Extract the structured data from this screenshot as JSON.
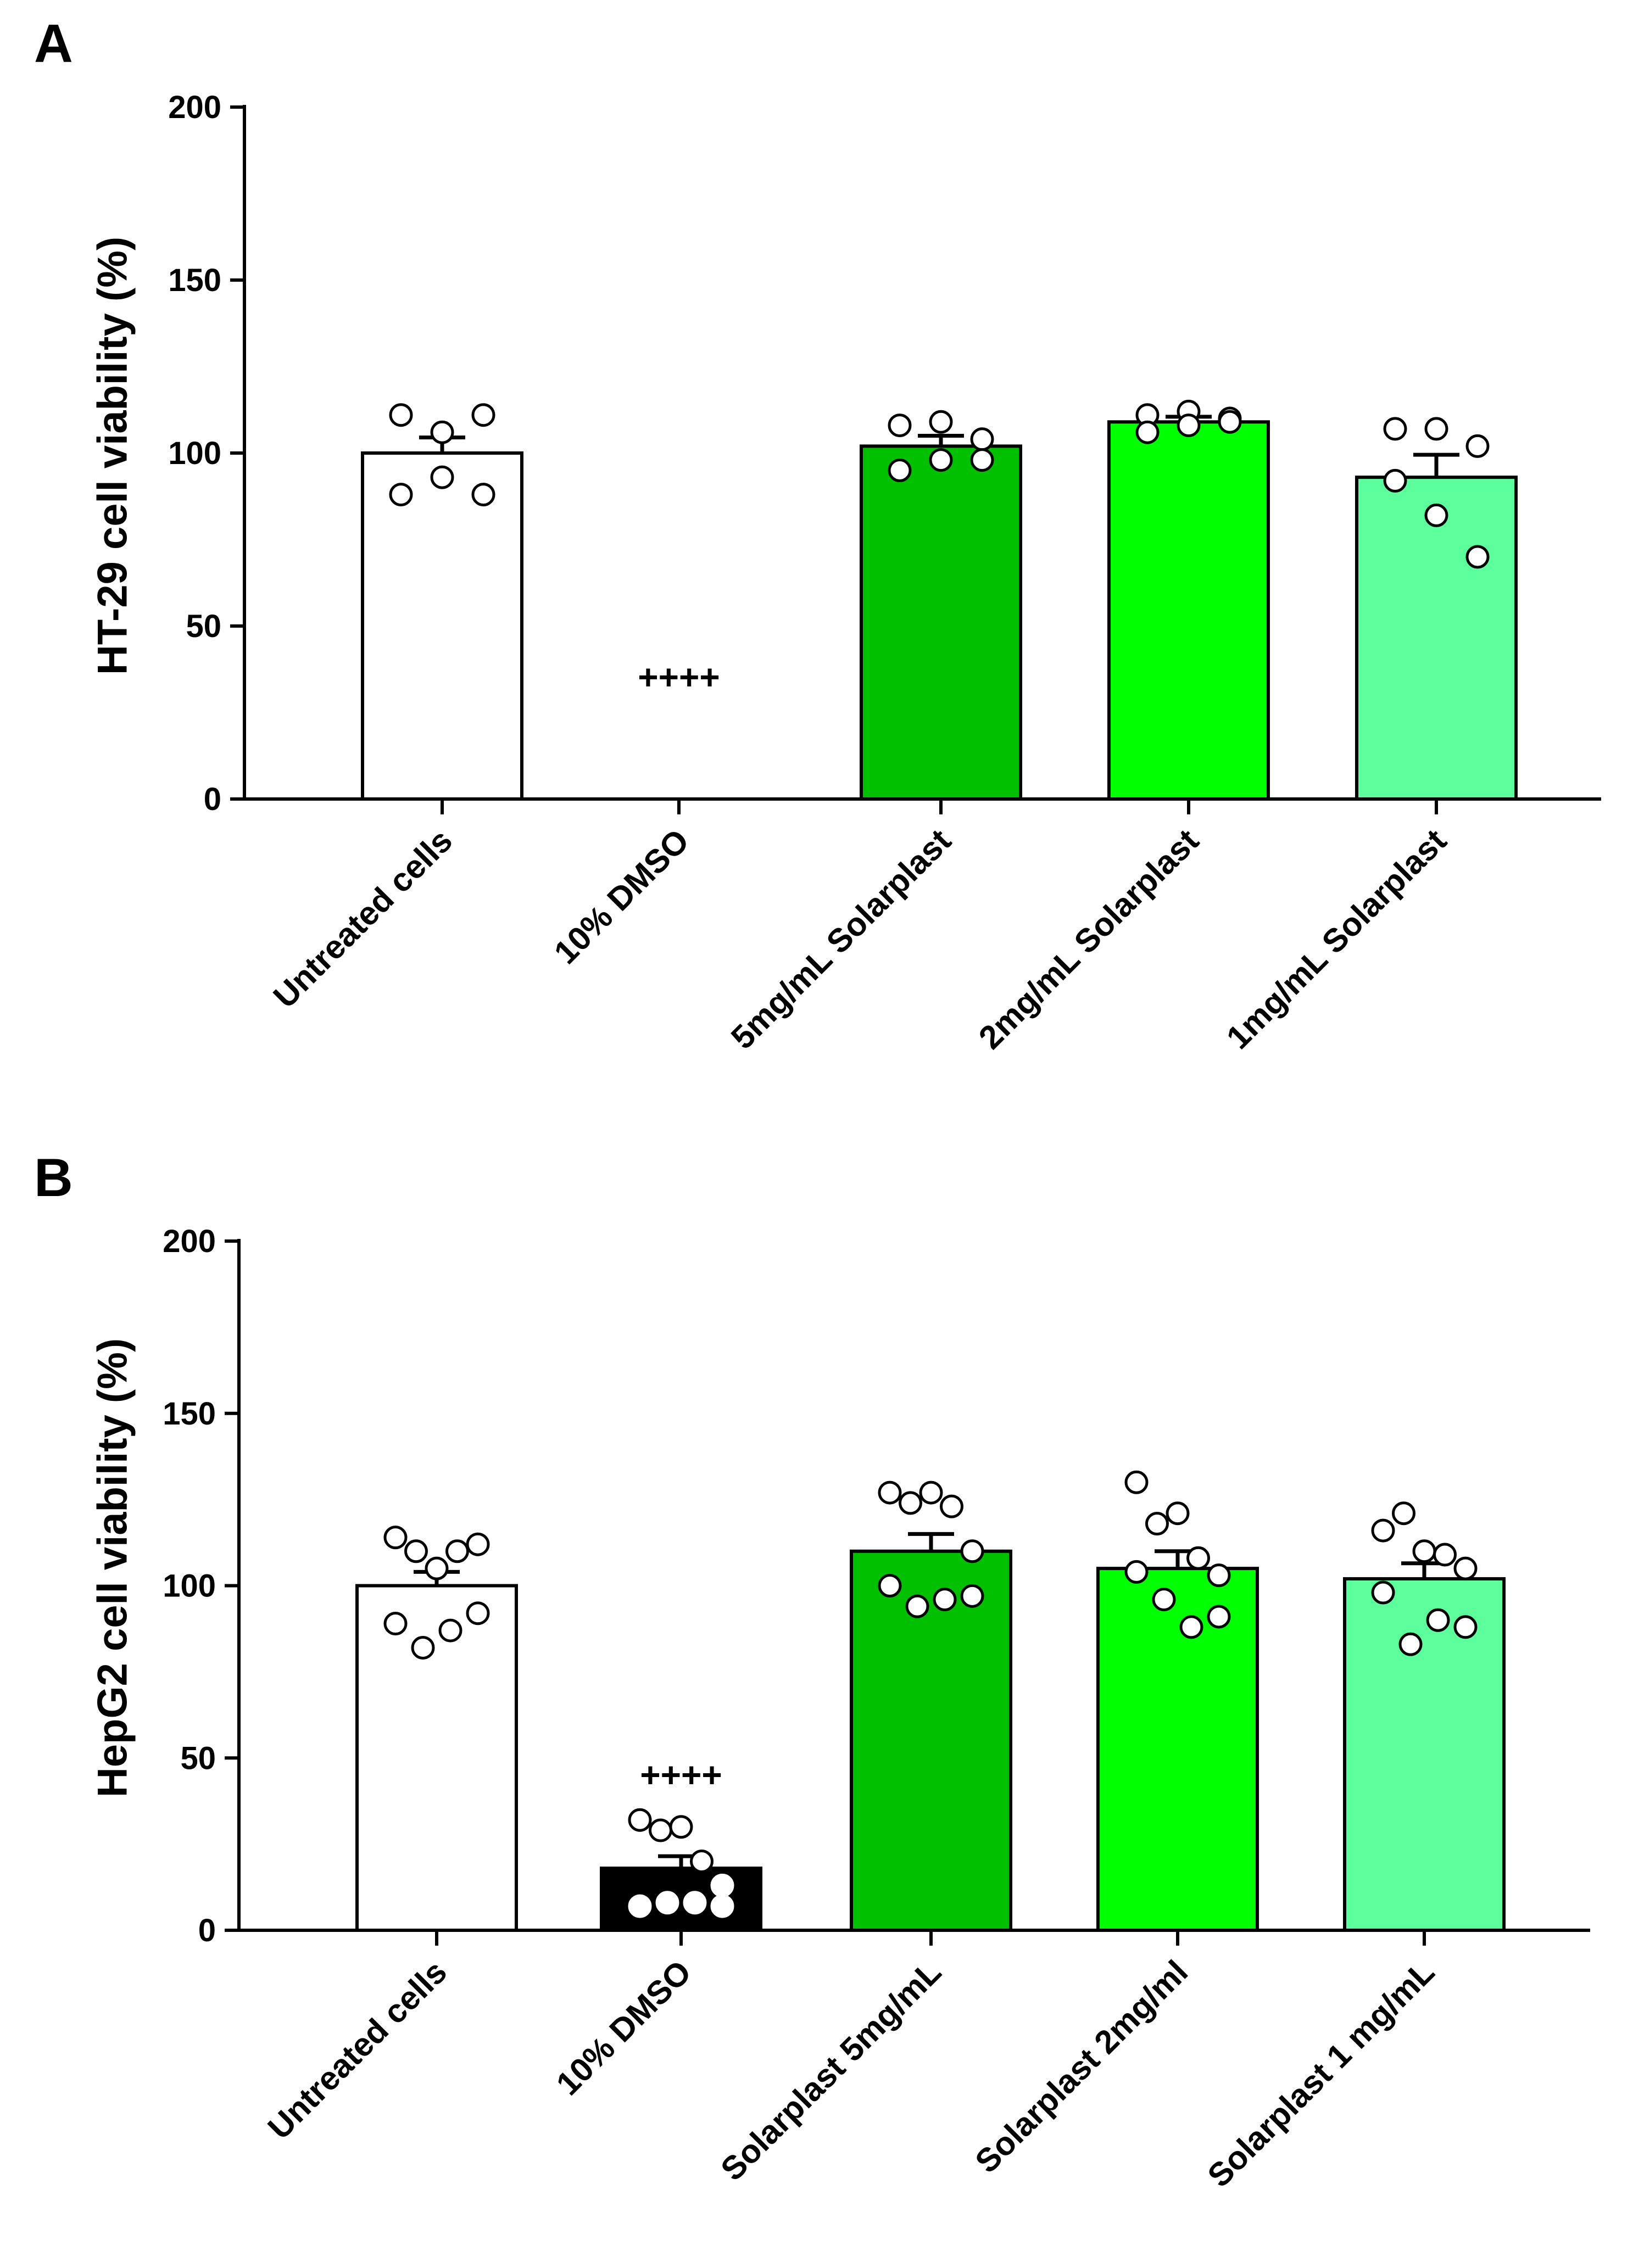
{
  "chart_data": [
    {
      "panel": "A",
      "type": "bar",
      "ylabel": "HT-29 cell viability (%)",
      "xlabel": "",
      "ylim": [
        0,
        200
      ],
      "yticks": [
        0,
        50,
        100,
        150,
        200
      ],
      "categories": [
        "Untreated cells",
        "10% DMSO",
        "5mg/mL Solarplast",
        "2mg/mL Solarplast",
        "1mg/mL Solarplast"
      ],
      "values": [
        100,
        0,
        102,
        109,
        93
      ],
      "errors": [
        4.5,
        0,
        3,
        1.5,
        6.5
      ],
      "points": [
        [
          111,
          106,
          111,
          88,
          93,
          88
        ],
        [],
        [
          108,
          109,
          104,
          95,
          98,
          98
        ],
        [
          111,
          112,
          110,
          106,
          108,
          109
        ],
        [
          107,
          107,
          102,
          92,
          82,
          70
        ]
      ],
      "colors": [
        "#ffffff",
        "#000000",
        "#00c000",
        "#00ff00",
        "#5cff9b"
      ],
      "annotations": [
        "",
        "++++",
        "",
        "",
        ""
      ],
      "grid": false,
      "legend": "none"
    },
    {
      "panel": "B",
      "type": "bar",
      "ylabel": "HepG2 cell viability (%)",
      "xlabel": "",
      "ylim": [
        0,
        200
      ],
      "yticks": [
        0,
        50,
        100,
        150,
        200
      ],
      "categories": [
        "Untreated cells",
        "10% DMSO",
        "Solarplast 5mg/mL",
        "Solarplast 2mg/ml",
        "Solarplast 1 mg/mL"
      ],
      "values": [
        100,
        18,
        110,
        105,
        102
      ],
      "errors": [
        4,
        3.5,
        5,
        5,
        4.5
      ],
      "points": [
        [
          114,
          110,
          105,
          110,
          112,
          89,
          82,
          87,
          92
        ],
        [
          32,
          29,
          30,
          20,
          13,
          7,
          8,
          8,
          7
        ],
        [
          127,
          124,
          127,
          123,
          110,
          100,
          94,
          96,
          97
        ],
        [
          130,
          118,
          121,
          108,
          103,
          104,
          96,
          88,
          91
        ],
        [
          116,
          121,
          110,
          109,
          105,
          98,
          83,
          90,
          88
        ]
      ],
      "colors": [
        "#ffffff",
        "#000000",
        "#00c000",
        "#00ff00",
        "#5cff9b"
      ],
      "annotations": [
        "",
        "++++",
        "",
        "",
        ""
      ],
      "grid": false,
      "legend": "none"
    }
  ],
  "panels": [
    {
      "letter": "A"
    },
    {
      "letter": "B"
    }
  ]
}
